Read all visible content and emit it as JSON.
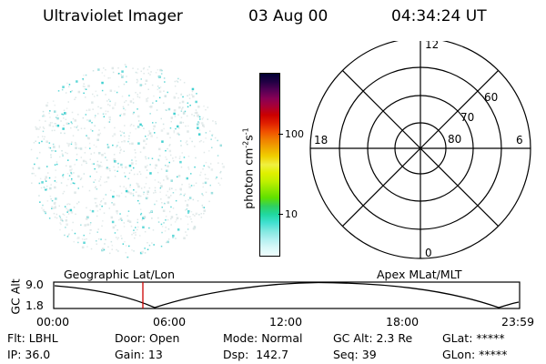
{
  "header": {
    "title": "Ultraviolet Imager",
    "date": "03 Aug 00",
    "time": "04:34:24 UT"
  },
  "colorbar": {
    "label": "photon cm",
    "label_sup1": "-2",
    "label_mid": "s",
    "label_sup2": "-1",
    "ticks": [
      "100",
      "10"
    ],
    "colors": [
      "#000033",
      "#220044",
      "#550055",
      "#880055",
      "#aa0033",
      "#cc0000",
      "#e02000",
      "#f05000",
      "#f08000",
      "#f0a800",
      "#f0d000",
      "#f0f040",
      "#e0f000",
      "#c0f000",
      "#90e800",
      "#60e000",
      "#30d060",
      "#20d8a0",
      "#40e0d0",
      "#80e8e0",
      "#b0f0f0",
      "#d8f8f8",
      "#f0ffff"
    ]
  },
  "polar_grid": {
    "mlt_labels": [
      "12",
      "18",
      "6",
      "0"
    ],
    "lat_labels": [
      "60",
      "70",
      "80"
    ]
  },
  "timeline": {
    "left_label": "Geographic Lat/Lon",
    "right_label": "Apex MLat/MLT",
    "axis_label": "GC Alt",
    "y_ticks": [
      "9.0",
      "1.8"
    ],
    "x_ticks": [
      "00:00",
      "06:00",
      "12:00",
      "18:00",
      "23:59"
    ],
    "marker_color": "#cc0000"
  },
  "status": {
    "flt": "Flt: LBHL",
    "door": "Door: Open",
    "mode": "Mode: Normal",
    "gc_alt": "GC Alt: 2.3 Re",
    "glat": "GLat: *****",
    "ip": "IP: 36.0",
    "gain": "Gain: 13",
    "dsp": "Dsp:  142.7",
    "seq": "Seq: 39",
    "glon": "GLon: *****"
  }
}
